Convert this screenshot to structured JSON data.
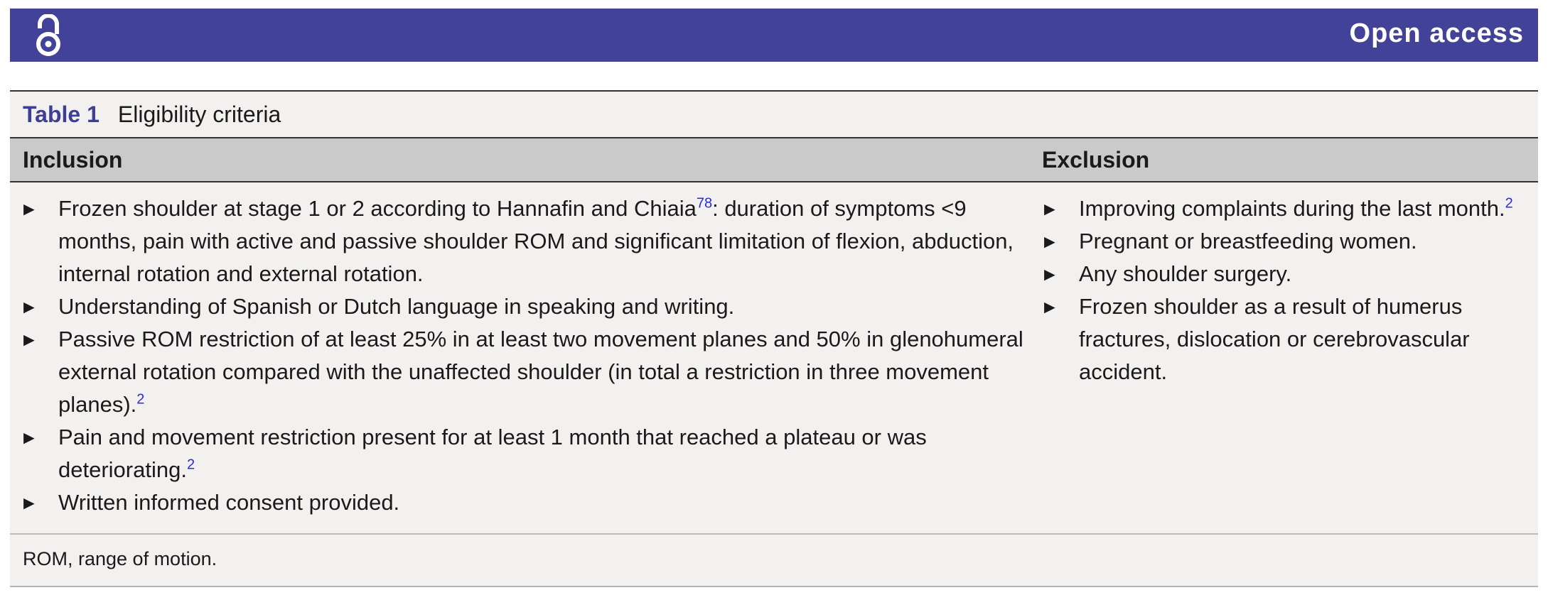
{
  "banner": {
    "title": "Open access",
    "icon": "open-access-lock-icon",
    "color": "#414298"
  },
  "table": {
    "number": "Table 1",
    "title": "Eligibility criteria",
    "headers": [
      "Inclusion",
      "Exclusion"
    ],
    "inclusion": [
      {
        "text": "Frozen shoulder at stage 1 or 2 according to Hannafin and Chiaia",
        "ref": "78",
        "after": ": duration of symptoms <9 months, pain with active and passive shoulder ROM and significant limitation of flexion, abduction, internal rotation and external rotation."
      },
      {
        "text": "Understanding of Spanish or Dutch language in speaking and writing.",
        "ref": null,
        "after": ""
      },
      {
        "text": "Passive ROM restriction of at least 25% in at least two movement planes and 50% in glenohumeral external rotation compared with the unaffected shoulder (in total a restriction in three movement planes).",
        "ref": "2",
        "after": ""
      },
      {
        "text": "Pain and movement restriction present for at least 1 month that reached a plateau or was deteriorating.",
        "ref": "2",
        "after": ""
      },
      {
        "text": "Written informed consent provided.",
        "ref": null,
        "after": ""
      }
    ],
    "exclusion": [
      {
        "text": "Improving complaints during the last month.",
        "ref": "2",
        "after": ""
      },
      {
        "text": "Pregnant or breastfeeding women.",
        "ref": null,
        "after": ""
      },
      {
        "text": "Any shoulder surgery.",
        "ref": null,
        "after": ""
      },
      {
        "text": "Frozen shoulder as a result of humerus fractures, dislocation or cerebrovascular accident.",
        "ref": null,
        "after": ""
      }
    ],
    "bullet": "►",
    "footnote": "ROM, range of motion.",
    "accent_color": "#3d3f95",
    "ref_color": "#2a2ae0"
  }
}
